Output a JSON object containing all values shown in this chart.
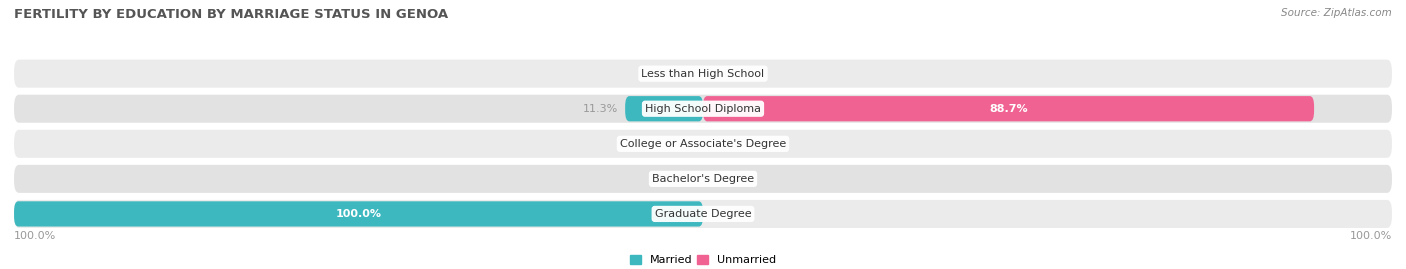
{
  "title": "FERTILITY BY EDUCATION BY MARRIAGE STATUS IN GENOA",
  "source": "Source: ZipAtlas.com",
  "categories": [
    "Less than High School",
    "High School Diploma",
    "College or Associate's Degree",
    "Bachelor's Degree",
    "Graduate Degree"
  ],
  "married_values": [
    0.0,
    11.3,
    0.0,
    0.0,
    100.0
  ],
  "unmarried_values": [
    0.0,
    88.7,
    0.0,
    0.0,
    0.0
  ],
  "married_color": "#3db8bf",
  "unmarried_color_full": "#f06292",
  "unmarried_color_small": "#f4a7c0",
  "bar_bg_odd": "#ebebeb",
  "bar_bg_even": "#e2e2e2",
  "figsize": [
    14.06,
    2.69
  ],
  "dpi": 100,
  "title_fontsize": 9.5,
  "label_fontsize": 8,
  "value_fontsize": 8,
  "source_fontsize": 7.5,
  "legend_fontsize": 8,
  "text_color_outside": "#999999",
  "title_color": "#555555"
}
